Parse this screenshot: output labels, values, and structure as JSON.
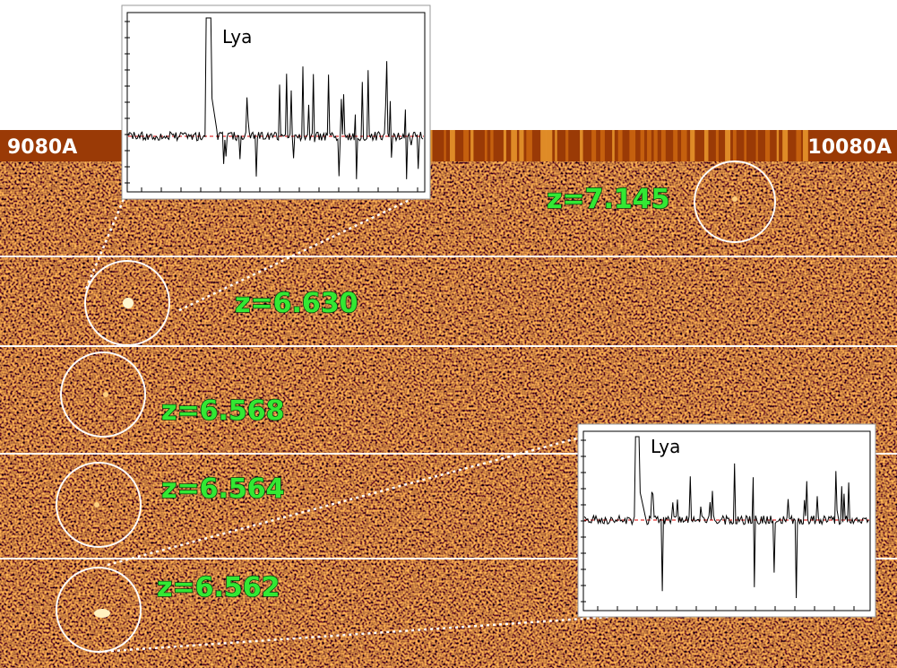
{
  "header": {
    "left_wavelength": "9080A",
    "right_wavelength": "10080A"
  },
  "objects": [
    {
      "label": "z=7.145"
    },
    {
      "label": "z=6.630"
    },
    {
      "label": "z=6.568"
    },
    {
      "label": "z=6.564"
    },
    {
      "label": "z=6.562"
    }
  ],
  "insets": [
    {
      "label": "Lya"
    },
    {
      "label": "Lya"
    }
  ]
}
